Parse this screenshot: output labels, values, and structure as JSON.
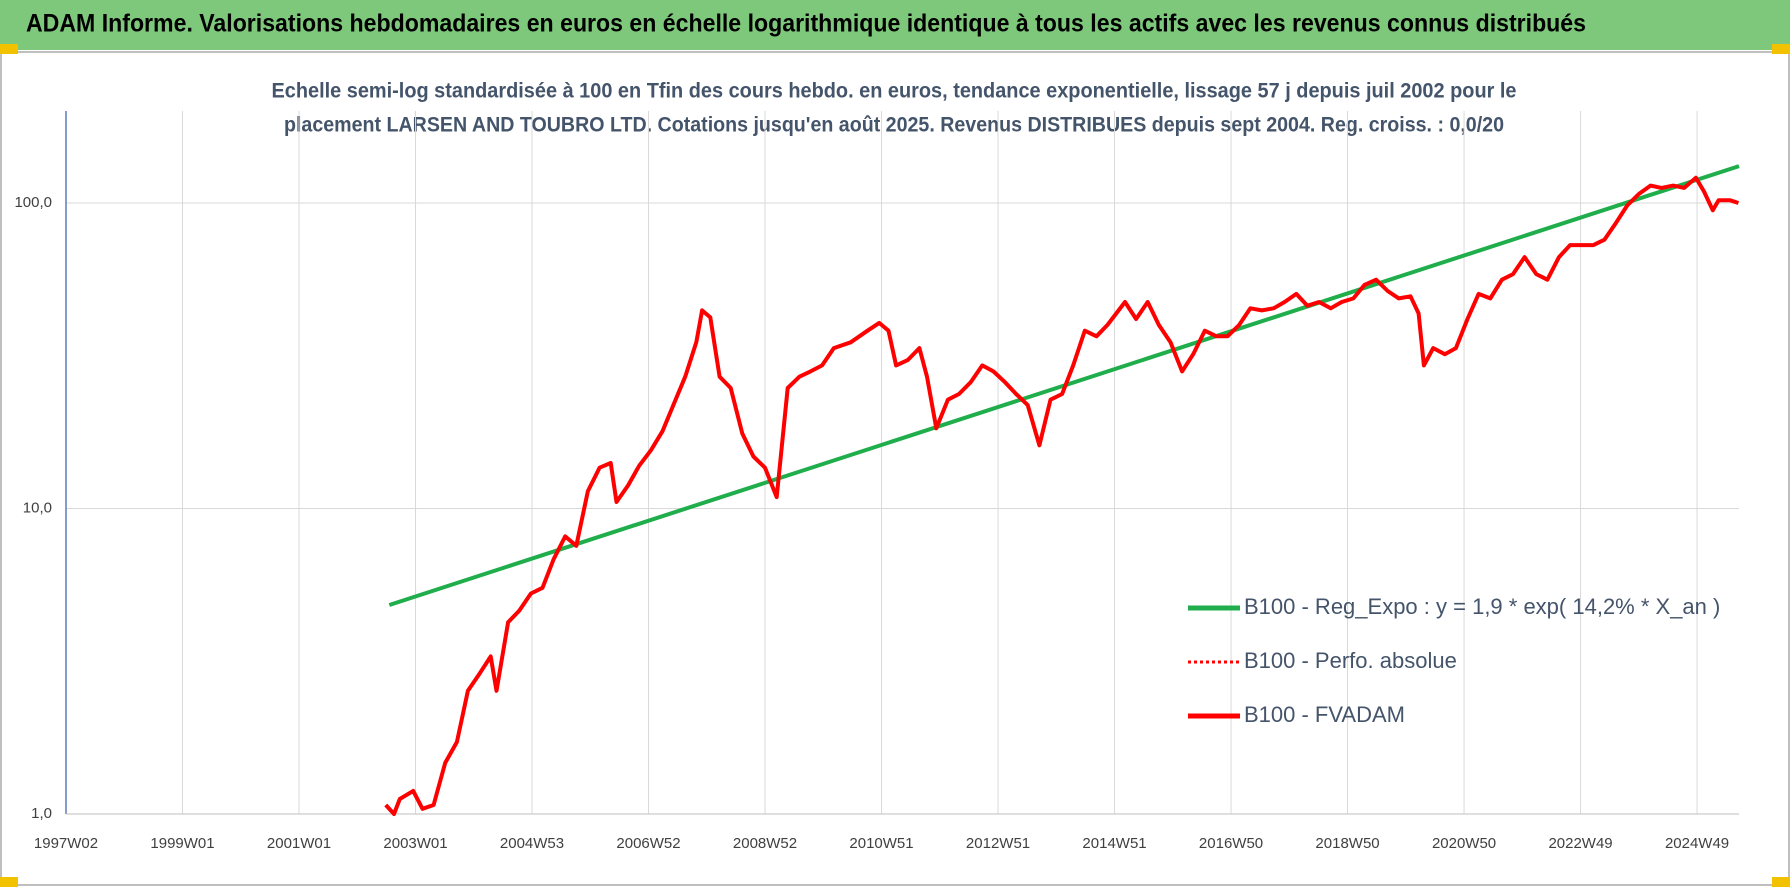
{
  "chart_data": {
    "type": "line",
    "title": "ADAM Informe. Valorisations hebdomadaires en euros en échelle logarithmique identique à tous les actifs avec les revenus connus distribués",
    "subtitle": [
      "Echelle semi-log standardisée à 100 en Tfin des cours hebdo. en euros, tendance exponentielle, lissage 57 j depuis juil 2002 pour le",
      "placement LARSEN AND TOUBRO LTD. Cotations jusqu'en août 2025. Revenus DISTRIBUES depuis sept 2004. Reg. croiss. : 0,0/20"
    ],
    "log_y": true,
    "grid": true,
    "legend": "lower right",
    "xlim": [
      1997.0,
      2025.72
    ],
    "xticks": [
      {
        "value": 1997.0,
        "label": "1997W02"
      },
      {
        "value": 1999.0,
        "label": "1999W01"
      },
      {
        "value": 2001.0,
        "label": "2001W01"
      },
      {
        "value": 2003.0,
        "label": "2003W01"
      },
      {
        "value": 2005.0,
        "label": "2004W53"
      },
      {
        "value": 2007.0,
        "label": "2006W52"
      },
      {
        "value": 2009.0,
        "label": "2008W52"
      },
      {
        "value": 2011.0,
        "label": "2010W51"
      },
      {
        "value": 2013.0,
        "label": "2012W51"
      },
      {
        "value": 2015.0,
        "label": "2014W51"
      },
      {
        "value": 2017.0,
        "label": "2016W50"
      },
      {
        "value": 2019.0,
        "label": "2018W50"
      },
      {
        "value": 2021.0,
        "label": "2020W50"
      },
      {
        "value": 2023.0,
        "label": "2022W49"
      },
      {
        "value": 2025.0,
        "label": "2024W49"
      }
    ],
    "ylim": [
      1,
      200
    ],
    "yticks": [
      {
        "value": 1,
        "label": "1,0"
      },
      {
        "value": 10,
        "label": "10,0"
      },
      {
        "value": 100,
        "label": "100,0"
      }
    ],
    "series": [
      {
        "name": "B100 - Reg_Expo : y = 1,9 * exp( 14,2% *  X_an )",
        "color": "#1fae4b",
        "style": "solid",
        "x": [
          2002.55,
          2025.72
        ],
        "values": [
          4.83,
          132
        ]
      },
      {
        "name": "B100 - Perfo. absolue",
        "color": "#ff0000",
        "style": "dotted",
        "x": [
          2002.49,
          2002.63,
          2002.73,
          2002.96,
          2003.12,
          2003.31,
          2003.51,
          2003.71,
          2003.9,
          2004.1,
          2004.29,
          2004.39,
          2004.59,
          2004.78,
          2004.98,
          2005.18,
          2005.37,
          2005.57,
          2005.76,
          2005.96,
          2006.16,
          2006.35,
          2006.45,
          2006.65,
          2006.84,
          2007.04,
          2007.24,
          2007.43,
          2007.63,
          2007.82,
          2007.92,
          2008.06,
          2008.22,
          2008.41,
          2008.61,
          2008.8,
          2009.0,
          2009.2,
          2009.39,
          2009.59,
          2009.78,
          2009.98,
          2010.18,
          2010.47,
          2010.76,
          2010.96,
          2011.12,
          2011.25,
          2011.45,
          2011.65,
          2011.78,
          2011.94,
          2012.14,
          2012.33,
          2012.53,
          2012.73,
          2012.92,
          2013.12,
          2013.31,
          2013.51,
          2013.71,
          2013.9,
          2014.1,
          2014.29,
          2014.49,
          2014.69,
          2014.88,
          2015.18,
          2015.37,
          2015.57,
          2015.76,
          2015.96,
          2016.16,
          2016.35,
          2016.55,
          2016.75,
          2016.94,
          2017.14,
          2017.33,
          2017.53,
          2017.73,
          2017.92,
          2018.12,
          2018.31,
          2018.51,
          2018.71,
          2018.9,
          2019.1,
          2019.29,
          2019.49,
          2019.69,
          2019.88,
          2020.08,
          2020.22,
          2020.31,
          2020.47,
          2020.67,
          2020.86,
          2021.06,
          2021.25,
          2021.45,
          2021.65,
          2021.84,
          2022.04,
          2022.24,
          2022.43,
          2022.63,
          2022.82,
          2023.02,
          2023.22,
          2023.41,
          2023.61,
          2023.8,
          2024.0,
          2024.2,
          2024.39,
          2024.59,
          2024.78,
          2024.98,
          2025.12,
          2025.27,
          2025.37,
          2025.57,
          2025.71
        ],
        "values": [
          1.07,
          1.0,
          1.12,
          1.19,
          1.04,
          1.07,
          1.47,
          1.72,
          2.53,
          2.88,
          3.28,
          2.53,
          4.24,
          4.63,
          5.27,
          5.5,
          6.82,
          8.1,
          7.55,
          11.4,
          13.6,
          14.1,
          10.5,
          11.9,
          13.8,
          15.5,
          17.9,
          21.9,
          27,
          35,
          44.5,
          42.2,
          27,
          24.8,
          17.6,
          14.8,
          13.6,
          10.9,
          24.8,
          27,
          28.1,
          29.4,
          33.5,
          35,
          38.2,
          40.5,
          38.2,
          29.4,
          30.6,
          33.5,
          27,
          18.3,
          22.7,
          23.7,
          25.9,
          29.4,
          28.1,
          25.9,
          23.7,
          21.8,
          16.1,
          22.7,
          23.7,
          29.4,
          38.2,
          36.6,
          39.9,
          47.4,
          41.7,
          47.4,
          39.9,
          35,
          28.1,
          32,
          38.2,
          36.6,
          36.6,
          39.9,
          45.2,
          44.5,
          45.2,
          47.4,
          50.4,
          46.1,
          47.4,
          45.2,
          47.4,
          48.7,
          53.9,
          56.1,
          51.5,
          48.7,
          49.5,
          43.5,
          29.4,
          33.5,
          32,
          33.5,
          41.7,
          50.4,
          48.7,
          56.1,
          58.5,
          66.5,
          58.5,
          56.1,
          66.5,
          72.8,
          72.8,
          72.8,
          75.8,
          86.2,
          98.1,
          107,
          114,
          112,
          114,
          112,
          121,
          109,
          94.6,
          102,
          102,
          100
        ]
      },
      {
        "name": "B100 - FVADAM",
        "color": "#ff0000",
        "style": "solid",
        "x": [
          2002.49,
          2002.63,
          2002.73,
          2002.96,
          2003.12,
          2003.31,
          2003.51,
          2003.71,
          2003.9,
          2004.1,
          2004.29,
          2004.39,
          2004.59,
          2004.78,
          2004.98,
          2005.18,
          2005.37,
          2005.57,
          2005.76,
          2005.96,
          2006.16,
          2006.35,
          2006.45,
          2006.65,
          2006.84,
          2007.04,
          2007.24,
          2007.43,
          2007.63,
          2007.82,
          2007.92,
          2008.06,
          2008.22,
          2008.41,
          2008.61,
          2008.8,
          2009.0,
          2009.2,
          2009.39,
          2009.59,
          2009.78,
          2009.98,
          2010.18,
          2010.47,
          2010.76,
          2010.96,
          2011.12,
          2011.25,
          2011.45,
          2011.65,
          2011.78,
          2011.94,
          2012.14,
          2012.33,
          2012.53,
          2012.73,
          2012.92,
          2013.12,
          2013.31,
          2013.51,
          2013.71,
          2013.9,
          2014.1,
          2014.29,
          2014.49,
          2014.69,
          2014.88,
          2015.18,
          2015.37,
          2015.57,
          2015.76,
          2015.96,
          2016.16,
          2016.35,
          2016.55,
          2016.75,
          2016.94,
          2017.14,
          2017.33,
          2017.53,
          2017.73,
          2017.92,
          2018.12,
          2018.31,
          2018.51,
          2018.71,
          2018.9,
          2019.1,
          2019.29,
          2019.49,
          2019.69,
          2019.88,
          2020.08,
          2020.22,
          2020.31,
          2020.47,
          2020.67,
          2020.86,
          2021.06,
          2021.25,
          2021.45,
          2021.65,
          2021.84,
          2022.04,
          2022.24,
          2022.43,
          2022.63,
          2022.82,
          2023.02,
          2023.22,
          2023.41,
          2023.61,
          2023.8,
          2024.0,
          2024.2,
          2024.39,
          2024.59,
          2024.78,
          2024.98,
          2025.12,
          2025.27,
          2025.37,
          2025.57,
          2025.71
        ],
        "values": [
          1.07,
          1.0,
          1.12,
          1.19,
          1.04,
          1.07,
          1.47,
          1.72,
          2.53,
          2.88,
          3.28,
          2.53,
          4.24,
          4.63,
          5.27,
          5.5,
          6.82,
          8.1,
          7.55,
          11.4,
          13.6,
          14.1,
          10.5,
          11.9,
          13.8,
          15.5,
          17.9,
          21.9,
          27,
          35,
          44.5,
          42.2,
          27,
          24.8,
          17.6,
          14.8,
          13.6,
          10.9,
          24.8,
          27,
          28.1,
          29.4,
          33.5,
          35,
          38.2,
          40.5,
          38.2,
          29.4,
          30.6,
          33.5,
          27,
          18.3,
          22.7,
          23.7,
          25.9,
          29.4,
          28.1,
          25.9,
          23.7,
          21.8,
          16.1,
          22.7,
          23.7,
          29.4,
          38.2,
          36.6,
          39.9,
          47.4,
          41.7,
          47.4,
          39.9,
          35,
          28.1,
          32,
          38.2,
          36.6,
          36.6,
          39.9,
          45.2,
          44.5,
          45.2,
          47.4,
          50.4,
          46.1,
          47.4,
          45.2,
          47.4,
          48.7,
          53.9,
          56.1,
          51.5,
          48.7,
          49.5,
          43.5,
          29.4,
          33.5,
          32,
          33.5,
          41.7,
          50.4,
          48.7,
          56.1,
          58.5,
          66.5,
          58.5,
          56.1,
          66.5,
          72.8,
          72.8,
          72.8,
          75.8,
          86.2,
          98.1,
          107,
          114,
          112,
          114,
          112,
          121,
          109,
          94.6,
          102,
          102,
          100
        ]
      }
    ]
  }
}
